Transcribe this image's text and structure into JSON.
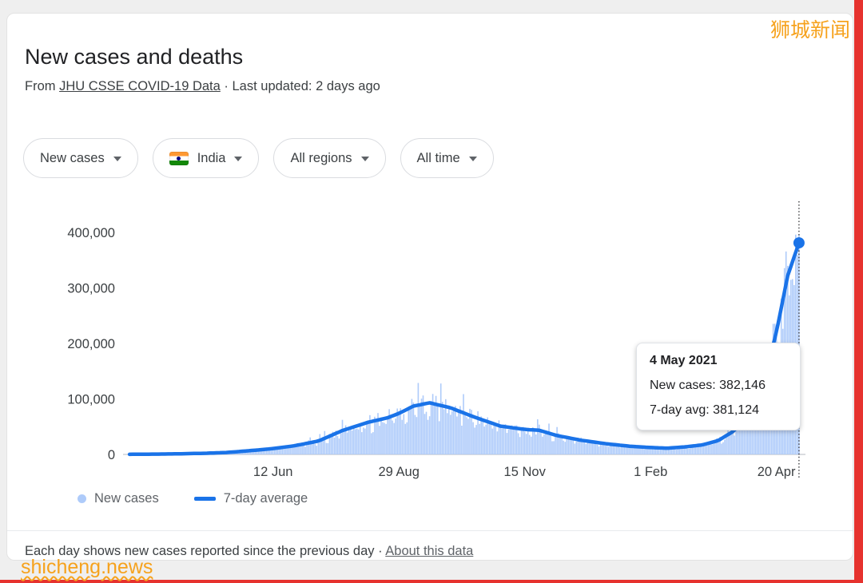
{
  "watermarks": {
    "top_right": "狮城新闻",
    "bottom_left": "shicheng.news"
  },
  "header": {
    "title": "New cases and deaths",
    "source_prefix": "From ",
    "source_link": "JHU CSSE COVID-19 Data",
    "separator": " · ",
    "last_updated": "Last updated: 2 days ago"
  },
  "filters": {
    "metric": {
      "label": "New cases"
    },
    "country": {
      "label": "India"
    },
    "region": {
      "label": "All regions"
    },
    "time": {
      "label": "All time"
    }
  },
  "tooltip": {
    "date": "4 May 2021",
    "new_cases_text": "New cases: 382,146",
    "avg_text": "7-day avg: 381,124"
  },
  "legend": [
    {
      "label": "New cases",
      "swatch": "dot",
      "color": "#aecbfa"
    },
    {
      "label": "7-day average",
      "swatch": "line",
      "color": "#1a73e8"
    }
  ],
  "footer": {
    "text": "Each day shows new cases reported since the previous day",
    "separator": " · ",
    "link": "About this data"
  },
  "chart_data": {
    "type": "area+line",
    "title": "New cases and deaths",
    "region": "India",
    "xlabel": "",
    "ylabel": "",
    "grid": false,
    "legend_position": "bottom",
    "ylim": [
      0,
      400000
    ],
    "yticks": [
      {
        "value": 0,
        "label": "0"
      },
      {
        "value": 100000,
        "label": "100,000"
      },
      {
        "value": 200000,
        "label": "200,000"
      },
      {
        "value": 300000,
        "label": "300,000"
      },
      {
        "value": 400000,
        "label": "400,000"
      }
    ],
    "xticks": [
      {
        "date": "2020-06-12",
        "label": "12 Jun"
      },
      {
        "date": "2020-08-29",
        "label": "29 Aug"
      },
      {
        "date": "2020-11-15",
        "label": "15 Nov"
      },
      {
        "date": "2021-02-01",
        "label": "1 Feb"
      },
      {
        "date": "2021-04-20",
        "label": "20 Apr"
      }
    ],
    "x_domain": [
      "2020-03-12",
      "2021-05-10"
    ],
    "colors": {
      "bars": "#aecbfa",
      "line": "#1a73e8"
    },
    "bars_series_name": "New cases",
    "line_series_name": "7-day average",
    "highlight": {
      "date": "2021-05-04",
      "new_cases": 382146,
      "seven_day_avg": 381124
    },
    "seven_day_avg_points": [
      [
        "2020-03-15",
        200
      ],
      [
        "2020-04-01",
        600
      ],
      [
        "2020-04-15",
        1100
      ],
      [
        "2020-05-01",
        2100
      ],
      [
        "2020-05-15",
        3600
      ],
      [
        "2020-06-01",
        7600
      ],
      [
        "2020-06-12",
        10500
      ],
      [
        "2020-06-25",
        15500
      ],
      [
        "2020-07-10",
        24000
      ],
      [
        "2020-07-25",
        43000
      ],
      [
        "2020-08-10",
        58000
      ],
      [
        "2020-08-22",
        66000
      ],
      [
        "2020-08-29",
        74000
      ],
      [
        "2020-09-07",
        87000
      ],
      [
        "2020-09-17",
        93000
      ],
      [
        "2020-09-30",
        84000
      ],
      [
        "2020-10-15",
        67000
      ],
      [
        "2020-10-31",
        51000
      ],
      [
        "2020-11-15",
        45000
      ],
      [
        "2020-11-24",
        43500
      ],
      [
        "2020-12-05",
        34000
      ],
      [
        "2020-12-20",
        25500
      ],
      [
        "2021-01-05",
        19000
      ],
      [
        "2021-01-20",
        14500
      ],
      [
        "2021-02-01",
        12500
      ],
      [
        "2021-02-11",
        11200
      ],
      [
        "2021-02-22",
        13500
      ],
      [
        "2021-03-05",
        17000
      ],
      [
        "2021-03-15",
        25000
      ],
      [
        "2021-03-25",
        43000
      ],
      [
        "2021-04-04",
        80000
      ],
      [
        "2021-04-12",
        130000
      ],
      [
        "2021-04-20",
        220000
      ],
      [
        "2021-04-27",
        322000
      ],
      [
        "2021-05-04",
        381124
      ]
    ]
  }
}
